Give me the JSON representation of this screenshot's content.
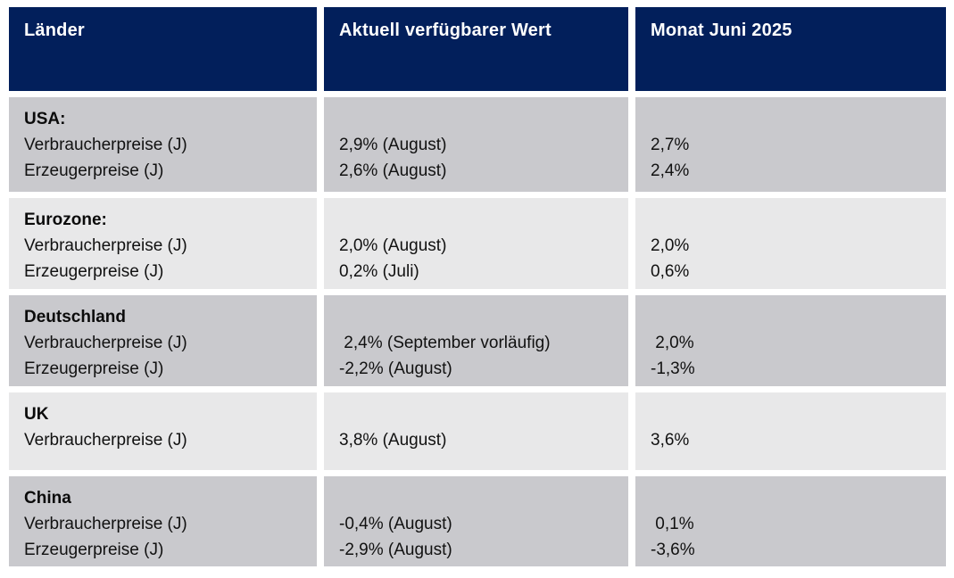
{
  "table": {
    "columns": [
      "Länder",
      "Aktuell verfügbarer Wert",
      "Monat Juni 2025"
    ],
    "rows": [
      {
        "country": "USA:",
        "metrics": [
          "Verbraucherpreise (J)",
          "Erzeugerpreise (J)"
        ],
        "current_values": [
          "2,9% (August)",
          "2,6% (August)"
        ],
        "june_2025_values": [
          "2,7%",
          "2,4%"
        ]
      },
      {
        "country": "Eurozone:",
        "metrics": [
          "Verbraucherpreise (J)",
          "Erzeugerpreise (J)"
        ],
        "current_values": [
          "2,0% (August)",
          "0,2% (Juli)"
        ],
        "june_2025_values": [
          "2,0%",
          "0,6%"
        ]
      },
      {
        "country": "Deutschland",
        "metrics": [
          "Verbraucherpreise (J)",
          "Erzeugerpreise (J)"
        ],
        "current_values": [
          " 2,4% (September vorläufig)",
          "-2,2% (August)"
        ],
        "june_2025_values": [
          " 2,0%",
          "-1,3%"
        ]
      },
      {
        "country": "UK",
        "metrics": [
          "Verbraucherpreise (J)"
        ],
        "current_values": [
          "3,8% (August)"
        ],
        "june_2025_values": [
          "3,6%"
        ]
      },
      {
        "country": "China",
        "metrics": [
          "Verbraucherpreise (J)",
          "Erzeugerpreise (J)"
        ],
        "current_values": [
          "-0,4% (August)",
          "-2,9% (August)"
        ],
        "june_2025_values": [
          " 0,1%",
          "-3,6%"
        ]
      }
    ],
    "colors": {
      "header_bg": "#021f5b",
      "header_text": "#ffffff",
      "row_dark_bg": "#c9c9cd",
      "row_light_bg": "#e8e8e9",
      "body_text": "#111111"
    }
  }
}
